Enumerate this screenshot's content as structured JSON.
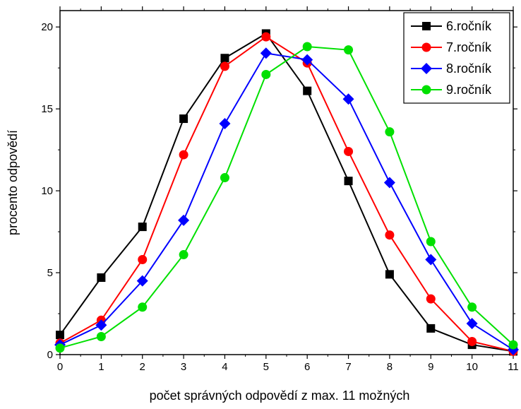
{
  "chart_data": {
    "type": "line",
    "title": "",
    "xlabel": "počet správných odpovědí  z max. 11 možných",
    "ylabel": "procento odpovědí",
    "xlim": [
      0,
      11
    ],
    "ylim": [
      0,
      21
    ],
    "xticks": [
      0,
      1,
      2,
      3,
      4,
      5,
      6,
      7,
      8,
      9,
      10,
      11
    ],
    "yticks": [
      0,
      5,
      10,
      15,
      20
    ],
    "grid": false,
    "legend_position": "top-right",
    "x": [
      0,
      1,
      2,
      3,
      4,
      5,
      6,
      7,
      8,
      9,
      10,
      11
    ],
    "series": [
      {
        "name": "6.ročník",
        "color": "#000000",
        "marker": "square",
        "values": [
          1.2,
          4.7,
          7.8,
          14.4,
          18.1,
          19.6,
          16.1,
          10.6,
          4.9,
          1.6,
          0.6,
          0.2
        ]
      },
      {
        "name": "7.ročník",
        "color": "#ff0000",
        "marker": "circle",
        "values": [
          0.7,
          2.1,
          5.8,
          12.2,
          17.6,
          19.4,
          17.8,
          12.4,
          7.3,
          3.4,
          0.8,
          0.2
        ]
      },
      {
        "name": "8.ročník",
        "color": "#0000ff",
        "marker": "diamond",
        "values": [
          0.6,
          1.8,
          4.5,
          8.2,
          14.1,
          18.4,
          18.0,
          15.6,
          10.5,
          5.8,
          1.9,
          0.3
        ]
      },
      {
        "name": "9.ročník",
        "color": "#00e000",
        "marker": "circle",
        "values": [
          0.4,
          1.1,
          2.9,
          6.1,
          10.8,
          17.1,
          18.8,
          18.6,
          13.6,
          6.9,
          2.9,
          0.6
        ]
      }
    ]
  }
}
